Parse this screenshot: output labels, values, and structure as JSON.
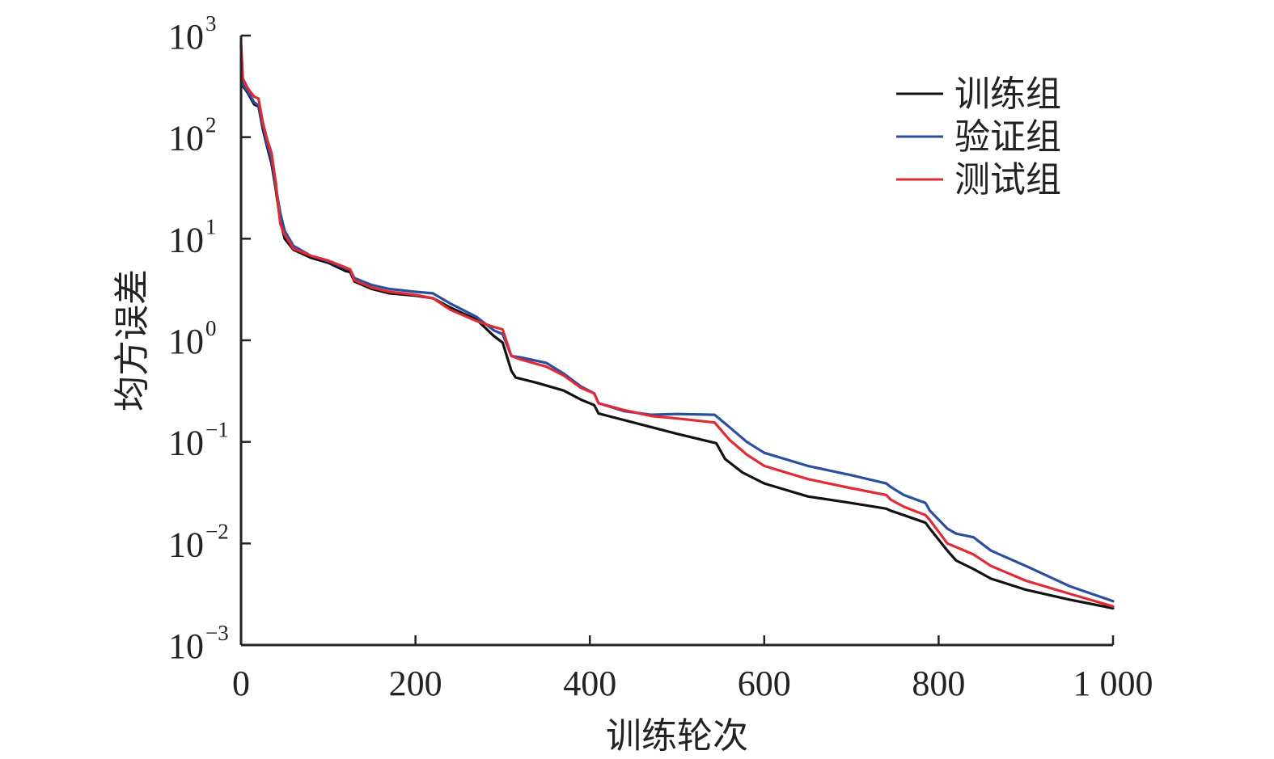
{
  "chart_data": {
    "type": "line",
    "xlabel": "训练轮次",
    "ylabel": "均方误差",
    "xscale": "linear",
    "yscale": "log",
    "xlim": [
      0,
      1000
    ],
    "ylim": [
      0.001,
      1000
    ],
    "grid": false,
    "legend_position": "top-right",
    "x_ticks": [
      {
        "value": 0,
        "label": "0"
      },
      {
        "value": 200,
        "label": "200"
      },
      {
        "value": 400,
        "label": "400"
      },
      {
        "value": 600,
        "label": "600"
      },
      {
        "value": 800,
        "label": "800"
      },
      {
        "value": 1000,
        "label": "1 000"
      }
    ],
    "y_ticks": [
      {
        "value": 1000,
        "base": "10",
        "exp": "3"
      },
      {
        "value": 100,
        "base": "10",
        "exp": "2"
      },
      {
        "value": 10,
        "base": "10",
        "exp": "1"
      },
      {
        "value": 1,
        "base": "10",
        "exp": "0"
      },
      {
        "value": 0.1,
        "base": "10",
        "exp": "−1"
      },
      {
        "value": 0.01,
        "base": "10",
        "exp": "−2"
      },
      {
        "value": 0.001,
        "base": "10",
        "exp": "−3"
      }
    ],
    "series": [
      {
        "name": "训练组",
        "color": "#111111",
        "points": [
          [
            0,
            800
          ],
          [
            2,
            320
          ],
          [
            8,
            270
          ],
          [
            15,
            210
          ],
          [
            20,
            200
          ],
          [
            25,
            120
          ],
          [
            30,
            80
          ],
          [
            35,
            55
          ],
          [
            40,
            30
          ],
          [
            45,
            15
          ],
          [
            50,
            10
          ],
          [
            60,
            7.8
          ],
          [
            80,
            6.5
          ],
          [
            100,
            5.8
          ],
          [
            120,
            4.8
          ],
          [
            125,
            4.7
          ],
          [
            130,
            3.8
          ],
          [
            150,
            3.2
          ],
          [
            170,
            2.9
          ],
          [
            200,
            2.75
          ],
          [
            220,
            2.6
          ],
          [
            240,
            2.1
          ],
          [
            270,
            1.6
          ],
          [
            290,
            1.1
          ],
          [
            300,
            0.95
          ],
          [
            310,
            0.5
          ],
          [
            315,
            0.43
          ],
          [
            340,
            0.38
          ],
          [
            370,
            0.32
          ],
          [
            390,
            0.26
          ],
          [
            405,
            0.23
          ],
          [
            410,
            0.19
          ],
          [
            450,
            0.155
          ],
          [
            500,
            0.12
          ],
          [
            545,
            0.097
          ],
          [
            555,
            0.068
          ],
          [
            575,
            0.05
          ],
          [
            600,
            0.039
          ],
          [
            650,
            0.029
          ],
          [
            700,
            0.025
          ],
          [
            740,
            0.022
          ],
          [
            745,
            0.021
          ],
          [
            760,
            0.019
          ],
          [
            785,
            0.016
          ],
          [
            790,
            0.014
          ],
          [
            810,
            0.0085
          ],
          [
            820,
            0.0068
          ],
          [
            840,
            0.0056
          ],
          [
            860,
            0.0045
          ],
          [
            900,
            0.0035
          ],
          [
            950,
            0.0028
          ],
          [
            1000,
            0.0023
          ]
        ]
      },
      {
        "name": "验证组",
        "color": "#2b4ea0",
        "points": [
          [
            0,
            780
          ],
          [
            2,
            330
          ],
          [
            8,
            280
          ],
          [
            15,
            220
          ],
          [
            20,
            205
          ],
          [
            25,
            130
          ],
          [
            30,
            85
          ],
          [
            35,
            60
          ],
          [
            40,
            32
          ],
          [
            45,
            18
          ],
          [
            50,
            12
          ],
          [
            60,
            8.5
          ],
          [
            80,
            6.8
          ],
          [
            100,
            6.0
          ],
          [
            120,
            5.1
          ],
          [
            125,
            5.0
          ],
          [
            130,
            4.1
          ],
          [
            150,
            3.5
          ],
          [
            170,
            3.2
          ],
          [
            200,
            3.0
          ],
          [
            220,
            2.9
          ],
          [
            240,
            2.3
          ],
          [
            270,
            1.7
          ],
          [
            290,
            1.25
          ],
          [
            300,
            1.15
          ],
          [
            310,
            0.7
          ],
          [
            320,
            0.68
          ],
          [
            350,
            0.6
          ],
          [
            370,
            0.47
          ],
          [
            390,
            0.35
          ],
          [
            405,
            0.3
          ],
          [
            410,
            0.24
          ],
          [
            440,
            0.2
          ],
          [
            470,
            0.185
          ],
          [
            500,
            0.188
          ],
          [
            543,
            0.185
          ],
          [
            560,
            0.14
          ],
          [
            580,
            0.1
          ],
          [
            600,
            0.078
          ],
          [
            650,
            0.058
          ],
          [
            700,
            0.047
          ],
          [
            740,
            0.039
          ],
          [
            745,
            0.036
          ],
          [
            760,
            0.03
          ],
          [
            785,
            0.025
          ],
          [
            790,
            0.021
          ],
          [
            810,
            0.014
          ],
          [
            820,
            0.0125
          ],
          [
            840,
            0.0115
          ],
          [
            860,
            0.0085
          ],
          [
            900,
            0.006
          ],
          [
            950,
            0.0038
          ],
          [
            1000,
            0.0027
          ]
        ]
      },
      {
        "name": "测试组",
        "color": "#e02b35",
        "points": [
          [
            0,
            850
          ],
          [
            2,
            380
          ],
          [
            8,
            300
          ],
          [
            15,
            250
          ],
          [
            20,
            240
          ],
          [
            25,
            140
          ],
          [
            30,
            95
          ],
          [
            35,
            70
          ],
          [
            40,
            35
          ],
          [
            45,
            14
          ],
          [
            50,
            11
          ],
          [
            60,
            8.0
          ],
          [
            80,
            6.8
          ],
          [
            100,
            6.1
          ],
          [
            120,
            5.2
          ],
          [
            125,
            5.0
          ],
          [
            130,
            3.9
          ],
          [
            150,
            3.3
          ],
          [
            170,
            3.0
          ],
          [
            200,
            2.8
          ],
          [
            220,
            2.6
          ],
          [
            240,
            2.0
          ],
          [
            270,
            1.55
          ],
          [
            290,
            1.35
          ],
          [
            300,
            1.28
          ],
          [
            310,
            0.7
          ],
          [
            320,
            0.65
          ],
          [
            350,
            0.55
          ],
          [
            370,
            0.45
          ],
          [
            390,
            0.34
          ],
          [
            405,
            0.3
          ],
          [
            410,
            0.24
          ],
          [
            440,
            0.205
          ],
          [
            470,
            0.18
          ],
          [
            500,
            0.17
          ],
          [
            543,
            0.155
          ],
          [
            560,
            0.105
          ],
          [
            580,
            0.075
          ],
          [
            600,
            0.058
          ],
          [
            650,
            0.043
          ],
          [
            700,
            0.035
          ],
          [
            740,
            0.03
          ],
          [
            745,
            0.027
          ],
          [
            760,
            0.023
          ],
          [
            785,
            0.019
          ],
          [
            790,
            0.017
          ],
          [
            810,
            0.01
          ],
          [
            820,
            0.0092
          ],
          [
            840,
            0.0078
          ],
          [
            860,
            0.006
          ],
          [
            900,
            0.0043
          ],
          [
            950,
            0.0032
          ],
          [
            1000,
            0.0024
          ]
        ]
      }
    ]
  }
}
